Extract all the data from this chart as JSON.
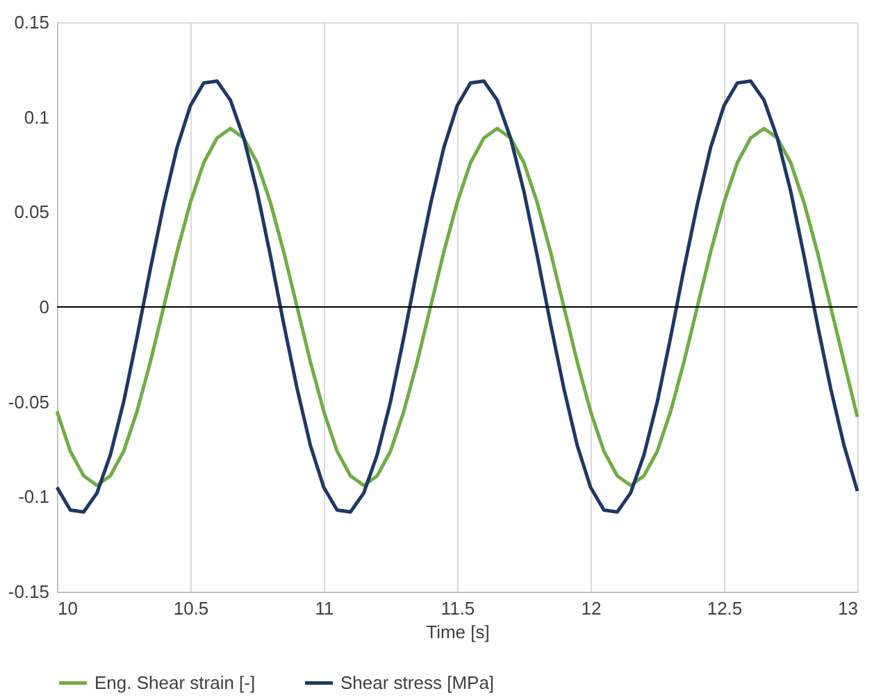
{
  "chart_data": {
    "type": "line",
    "xlabel": "Time [s]",
    "x": [
      10,
      10.05,
      10.1,
      10.15,
      10.2,
      10.25,
      10.3,
      10.35,
      10.4,
      10.45,
      10.5,
      10.55,
      10.6,
      10.65,
      10.7,
      10.75,
      10.8,
      10.85,
      10.9,
      10.95,
      11,
      11.05,
      11.1,
      11.15,
      11.2,
      11.25,
      11.3,
      11.35,
      11.4,
      11.45,
      11.5,
      11.55,
      11.6,
      11.65,
      11.7,
      11.75,
      11.8,
      11.85,
      11.9,
      11.95,
      12,
      12.05,
      12.1,
      12.15,
      12.2,
      12.25,
      12.3,
      12.35,
      12.4,
      12.45,
      12.5,
      12.55,
      12.6,
      12.65,
      12.7,
      12.75,
      12.8,
      12.85,
      12.9,
      12.95,
      13
    ],
    "series": [
      {
        "name": "Eng. Shear strain [-]",
        "color": "#70ad47",
        "values": [
          -0.055,
          -0.076,
          -0.089,
          -0.094,
          -0.089,
          -0.076,
          -0.055,
          -0.029,
          0,
          0.029,
          0.055,
          0.076,
          0.089,
          0.094,
          0.089,
          0.076,
          0.055,
          0.029,
          0,
          -0.029,
          -0.055,
          -0.076,
          -0.089,
          -0.094,
          -0.089,
          -0.076,
          -0.055,
          -0.029,
          0,
          0.029,
          0.055,
          0.076,
          0.089,
          0.094,
          0.089,
          0.076,
          0.055,
          0.029,
          0,
          -0.029,
          -0.055,
          -0.076,
          -0.089,
          -0.094,
          -0.089,
          -0.076,
          -0.055,
          -0.029,
          0,
          0.029,
          0.055,
          0.076,
          0.089,
          0.094,
          0.089,
          0.076,
          0.055,
          0.029,
          0,
          -0.029,
          -0.058
        ]
      },
      {
        "name": "Shear stress [MPa]",
        "color": "#1f3864",
        "values": [
          -0.095,
          -0.107,
          -0.108,
          -0.098,
          -0.078,
          -0.05,
          -0.016,
          0.02,
          0.054,
          0.084,
          0.106,
          0.118,
          0.119,
          0.109,
          0.089,
          0.061,
          0.027,
          -0.009,
          -0.043,
          -0.073,
          -0.095,
          -0.107,
          -0.108,
          -0.098,
          -0.078,
          -0.05,
          -0.016,
          0.02,
          0.054,
          0.084,
          0.106,
          0.118,
          0.119,
          0.109,
          0.089,
          0.061,
          0.027,
          -0.009,
          -0.043,
          -0.073,
          -0.095,
          -0.107,
          -0.108,
          -0.098,
          -0.078,
          -0.05,
          -0.016,
          0.02,
          0.054,
          0.084,
          0.106,
          0.118,
          0.119,
          0.109,
          0.089,
          0.061,
          0.027,
          -0.009,
          -0.043,
          -0.073,
          -0.097
        ]
      }
    ],
    "xlim": [
      10,
      13
    ],
    "xticks": [
      10,
      10.5,
      11,
      11.5,
      12,
      12.5,
      13
    ],
    "ylim": [
      -0.15,
      0.15
    ],
    "yticks": [
      -0.15,
      -0.1,
      -0.05,
      0,
      0.05,
      0.1,
      0.15
    ],
    "ref_lines": [
      {
        "axis": "y",
        "value": 0,
        "color": "#000000"
      }
    ],
    "grid": "x",
    "legend": "bottom",
    "marker": "none",
    "line_style": "solid"
  }
}
